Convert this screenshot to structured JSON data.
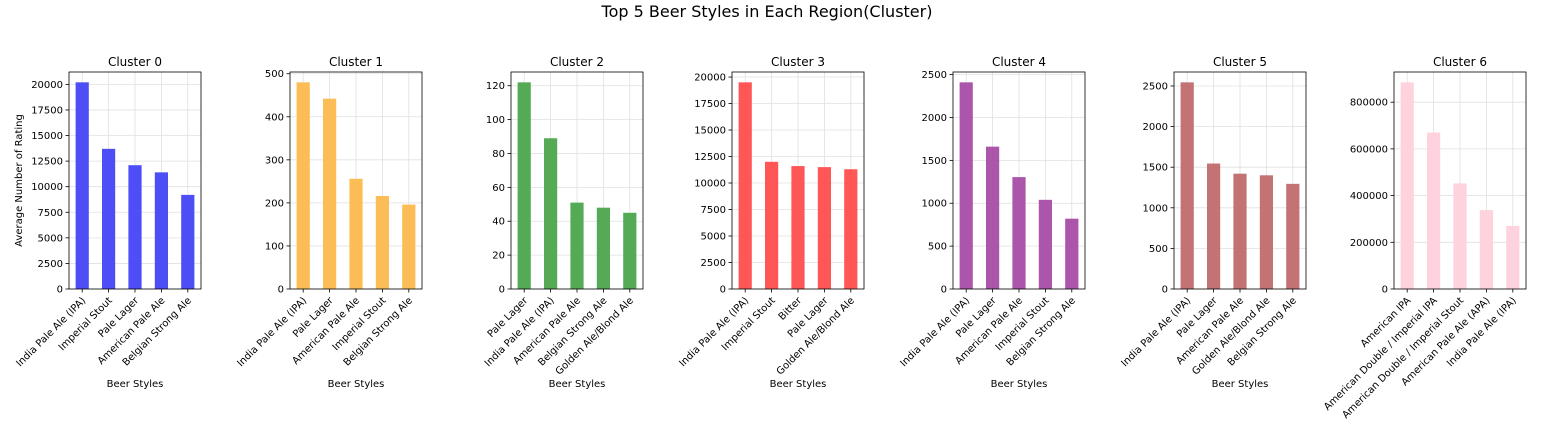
{
  "figure": {
    "title": "Top 5 Beer Styles in Each Region(Cluster)"
  },
  "chart_data": [
    {
      "type": "bar",
      "title": "Cluster 0",
      "xlabel": "Beer Styles",
      "ylabel": "Average Number of Rating",
      "color": "#4545f5",
      "categories": [
        "India Pale Ale (IPA)",
        "Imperial Stout",
        "Pale Lager",
        "American Pale Ale",
        "Belgian Strong Ale"
      ],
      "values": [
        20200,
        13700,
        12100,
        11400,
        9200
      ],
      "ylim": [
        0,
        21210
      ],
      "yticks": [
        0,
        2500,
        5000,
        7500,
        10000,
        12500,
        15000,
        17500,
        20000
      ],
      "grid": true
    },
    {
      "type": "bar",
      "title": "Cluster 1",
      "xlabel": "Beer Styles",
      "ylabel": "",
      "color": "#fdb94d",
      "categories": [
        "India Pale Ale (IPA)",
        "Pale Lager",
        "American Pale Ale",
        "Imperial Stout",
        "Belgian Strong Ale"
      ],
      "values": [
        480,
        442,
        256,
        216,
        196
      ],
      "ylim": [
        0,
        504
      ],
      "yticks": [
        0,
        100,
        200,
        300,
        400,
        500
      ],
      "grid": true
    },
    {
      "type": "bar",
      "title": "Cluster 2",
      "xlabel": "Beer Styles",
      "ylabel": "",
      "color": "#4ca64c",
      "categories": [
        "Pale Lager",
        "India Pale Ale (IPA)",
        "American Pale Ale",
        "Belgian Strong Ale",
        "Golden Ale/Blond Ale"
      ],
      "values": [
        122,
        89,
        51,
        48,
        45
      ],
      "ylim": [
        0,
        128.1
      ],
      "yticks": [
        0,
        20,
        40,
        60,
        80,
        100,
        120
      ],
      "grid": true
    },
    {
      "type": "bar",
      "title": "Cluster 3",
      "xlabel": "Beer Styles",
      "ylabel": "",
      "color": "#ff4d4d",
      "categories": [
        "India Pale Ale (IPA)",
        "Imperial Stout",
        "Bitter",
        "Pale Lager",
        "Golden Ale/Blond Ale"
      ],
      "values": [
        19500,
        12000,
        11600,
        11500,
        11300
      ],
      "ylim": [
        0,
        20475
      ],
      "yticks": [
        0,
        2500,
        5000,
        7500,
        10000,
        12500,
        15000,
        17500,
        20000
      ],
      "grid": true
    },
    {
      "type": "bar",
      "title": "Cluster 4",
      "xlabel": "Beer Styles",
      "ylabel": "",
      "color": "#a64ca6",
      "categories": [
        "India Pale Ale (IPA)",
        "Pale Lager",
        "American Pale Ale",
        "Imperial Stout",
        "Belgian Strong Ale"
      ],
      "values": [
        2410,
        1660,
        1305,
        1040,
        820
      ],
      "ylim": [
        0,
        2530.5
      ],
      "yticks": [
        0,
        500,
        1000,
        1500,
        2000,
        2500
      ],
      "grid": true
    },
    {
      "type": "bar",
      "title": "Cluster 5",
      "xlabel": "Beer Styles",
      "ylabel": "",
      "color": "#c06c6c",
      "categories": [
        "India Pale Ale (IPA)",
        "Pale Lager",
        "American Pale Ale",
        "Golden Ale/Blond Ale",
        "Belgian Strong Ale"
      ],
      "values": [
        2545,
        1545,
        1420,
        1400,
        1295
      ],
      "ylim": [
        0,
        2672.25
      ],
      "yticks": [
        0,
        500,
        1000,
        1500,
        2000,
        2500
      ],
      "grid": true
    },
    {
      "type": "bar",
      "title": "Cluster 6",
      "xlabel": "",
      "ylabel": "",
      "color": "#ffd1dc",
      "categories": [
        "American IPA",
        "American Double / Imperial IPA",
        "American Double / Imperial Stout",
        "American Pale Ale (APA)",
        "India Pale Ale (IPA)"
      ],
      "values": [
        885000,
        670000,
        452000,
        338000,
        270000
      ],
      "ylim": [
        0,
        929250
      ],
      "yticks": [
        0,
        200000,
        400000,
        600000,
        800000
      ],
      "grid": true
    }
  ]
}
